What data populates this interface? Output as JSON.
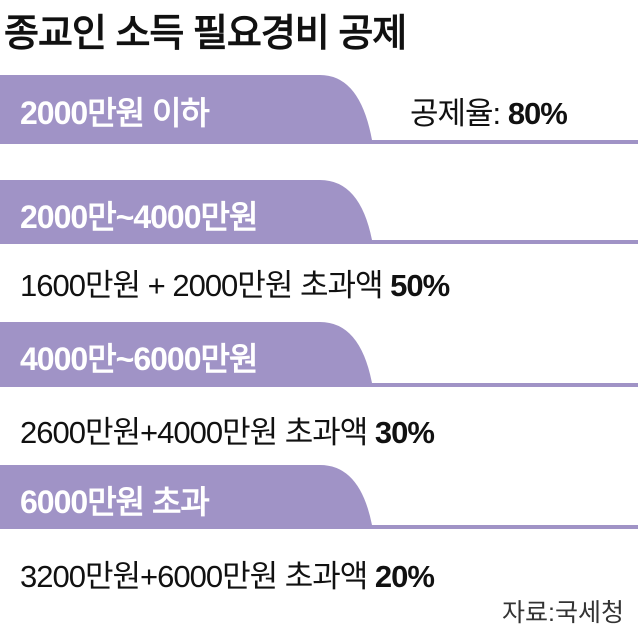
{
  "header": {
    "title": "종교인 소득 필요경비 공제"
  },
  "sections": [
    {
      "label": "2000만원 이하",
      "text": "공제율:",
      "rate": "80%"
    },
    {
      "label": "2000만~4000만원",
      "text": "1600만원 + 2000만원 초과액",
      "rate": "50%"
    },
    {
      "label": "4000만~6000만원",
      "text": "2600만원+4000만원 초과액",
      "rate": "30%"
    },
    {
      "label": "6000만원 초과",
      "text": "3200만원+6000만원 초과액",
      "rate": "20%"
    }
  ],
  "source": "자료:국세청"
}
